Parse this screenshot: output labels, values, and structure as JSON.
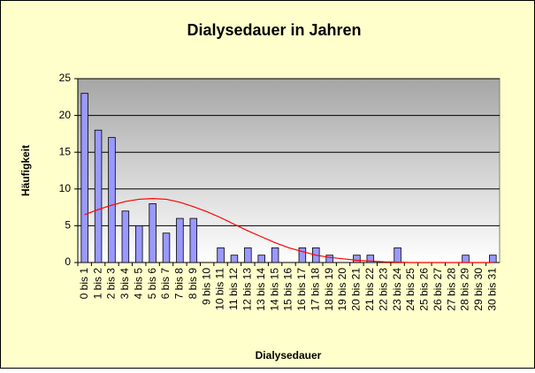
{
  "chart_data": {
    "type": "bar",
    "title": "Dialysedauer in Jahren",
    "x_label": "Dialysedauer",
    "y_label": "Häufigkeit",
    "categories": [
      "0 bis 1",
      "1 bis 2",
      "2 bis 3",
      "3 bis 4",
      "4 bis 5",
      "5 bis 6",
      "6 bis 7",
      "7 bis 8",
      "8 bis 9",
      "9 bis 10",
      "10 bis 11",
      "11 bis 12",
      "12 bis 13",
      "13 bis 14",
      "14 bis 15",
      "15 bis 16",
      "16 bis 17",
      "17 bis 18",
      "18 bis 19",
      "19 bis 20",
      "20 bis 21",
      "21 bis 22",
      "22 bis 23",
      "23 bis 24",
      "24 bis 25",
      "25 bis 26",
      "26 bis 27",
      "27 bis 28",
      "28 bis 29",
      "29 bis 30",
      "30 bis 31"
    ],
    "series": [
      {
        "type": "bar",
        "color": "#9999ff",
        "values": [
          23,
          18,
          17,
          7,
          5,
          8,
          4,
          6,
          6,
          0,
          2,
          1,
          2,
          1,
          2,
          0,
          2,
          2,
          1,
          0,
          1,
          1,
          0,
          2,
          0,
          0,
          0,
          0,
          1,
          0,
          1
        ]
      },
      {
        "type": "line",
        "color": "#ff0000",
        "values": [
          6.5,
          7.2,
          7.8,
          8.3,
          8.6,
          8.7,
          8.6,
          8.2,
          7.6,
          6.9,
          6.1,
          5.2,
          4.3,
          3.5,
          2.7,
          2.0,
          1.5,
          1.0,
          0.7,
          0.5,
          0.3,
          0.2,
          0.1,
          0.05,
          0,
          0,
          0,
          0,
          0,
          0,
          0
        ]
      }
    ],
    "ylim": [
      0,
      25
    ],
    "yticks": [
      0,
      5,
      10,
      15,
      20,
      25
    ],
    "grid": true
  }
}
